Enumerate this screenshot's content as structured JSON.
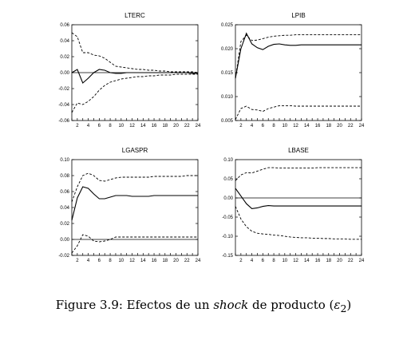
{
  "caption": {
    "prefix": "Figure 3.9: Efectos de un ",
    "italic": "shock",
    "middle": " de producto (",
    "symbol": "ε",
    "subscript": "2",
    "suffix": ")"
  },
  "chart_data": [
    {
      "type": "line",
      "title": "LTERC",
      "x": [
        1,
        2,
        3,
        4,
        5,
        6,
        7,
        8,
        9,
        10,
        11,
        12,
        13,
        14,
        15,
        16,
        17,
        18,
        19,
        20,
        21,
        22,
        23,
        24
      ],
      "xticks": [
        2,
        4,
        6,
        8,
        10,
        12,
        14,
        16,
        18,
        20,
        22,
        24
      ],
      "xlim": [
        1,
        24
      ],
      "ylim": [
        -0.06,
        0.06
      ],
      "yticks": [
        -0.06,
        -0.04,
        -0.02,
        0.0,
        0.02,
        0.04,
        0.06
      ],
      "ytick_labels": [
        "-0.06",
        "-0.04",
        "-0.02",
        "0.00",
        "0.02",
        "0.04",
        "0.06"
      ],
      "zero_line": true,
      "series": [
        {
          "role": "response",
          "values": [
            0.0,
            0.004,
            -0.013,
            -0.007,
            0.0,
            0.004,
            0.003,
            0.0,
            -0.001,
            -0.001,
            0.0,
            0.0,
            0.0,
            0.0,
            0.0,
            0.0,
            0.0,
            0.0,
            0.0,
            0.0,
            0.0,
            0.0,
            -0.001,
            -0.001
          ]
        },
        {
          "role": "upper",
          "values": [
            0.05,
            0.045,
            0.025,
            0.025,
            0.022,
            0.021,
            0.018,
            0.013,
            0.008,
            0.007,
            0.006,
            0.005,
            0.004,
            0.004,
            0.003,
            0.003,
            0.002,
            0.002,
            0.001,
            0.001,
            0.001,
            0.001,
            0.001,
            0.0
          ]
        },
        {
          "role": "lower",
          "values": [
            -0.05,
            -0.038,
            -0.04,
            -0.036,
            -0.03,
            -0.022,
            -0.016,
            -0.012,
            -0.01,
            -0.008,
            -0.007,
            -0.006,
            -0.005,
            -0.005,
            -0.004,
            -0.004,
            -0.003,
            -0.003,
            -0.003,
            -0.002,
            -0.002,
            -0.002,
            -0.002,
            -0.002
          ]
        }
      ]
    },
    {
      "type": "line",
      "title": "LPIB",
      "x": [
        1,
        2,
        3,
        4,
        5,
        6,
        7,
        8,
        9,
        10,
        11,
        12,
        13,
        14,
        15,
        16,
        17,
        18,
        19,
        20,
        21,
        22,
        23,
        24
      ],
      "xticks": [
        2,
        4,
        6,
        8,
        10,
        12,
        14,
        16,
        18,
        20,
        22,
        24
      ],
      "xlim": [
        1,
        24
      ],
      "ylim": [
        0.005,
        0.025
      ],
      "yticks": [
        0.005,
        0.01,
        0.015,
        0.02,
        0.025
      ],
      "ytick_labels": [
        "0.005",
        "0.010",
        "0.015",
        "0.020",
        "0.025"
      ],
      "zero_line": false,
      "series": [
        {
          "role": "response",
          "values": [
            0.0138,
            0.02,
            0.0232,
            0.021,
            0.0202,
            0.0198,
            0.0205,
            0.0209,
            0.021,
            0.0208,
            0.0207,
            0.0207,
            0.0208,
            0.0208,
            0.0208,
            0.0208,
            0.0208,
            0.0208,
            0.0208,
            0.0208,
            0.0208,
            0.0208,
            0.0208,
            0.0208
          ]
        },
        {
          "role": "upper",
          "values": [
            0.0138,
            0.0215,
            0.0228,
            0.0217,
            0.0218,
            0.0221,
            0.0224,
            0.0226,
            0.0227,
            0.0228,
            0.0228,
            0.0229,
            0.0229,
            0.0229,
            0.0229,
            0.0229,
            0.0229,
            0.0229,
            0.0229,
            0.0229,
            0.0229,
            0.0229,
            0.0229,
            0.0229
          ]
        },
        {
          "role": "lower",
          "values": [
            0.0052,
            0.0075,
            0.008,
            0.0073,
            0.0072,
            0.0069,
            0.0075,
            0.0078,
            0.0081,
            0.0081,
            0.0081,
            0.008,
            0.008,
            0.008,
            0.008,
            0.008,
            0.008,
            0.008,
            0.008,
            0.008,
            0.008,
            0.008,
            0.008,
            0.008
          ]
        }
      ]
    },
    {
      "type": "line",
      "title": "LGASPR",
      "x": [
        1,
        2,
        3,
        4,
        5,
        6,
        7,
        8,
        9,
        10,
        11,
        12,
        13,
        14,
        15,
        16,
        17,
        18,
        19,
        20,
        21,
        22,
        23,
        24
      ],
      "xticks": [
        2,
        4,
        6,
        8,
        10,
        12,
        14,
        16,
        18,
        20,
        22,
        24
      ],
      "xlim": [
        1,
        24
      ],
      "ylim": [
        -0.02,
        0.1
      ],
      "yticks": [
        -0.02,
        0.0,
        0.02,
        0.04,
        0.06,
        0.08,
        0.1
      ],
      "ytick_labels": [
        "-0.02",
        "0.00",
        "0.02",
        "0.04",
        "0.06",
        "0.08",
        "0.10"
      ],
      "zero_line": true,
      "series": [
        {
          "role": "response",
          "values": [
            0.024,
            0.052,
            0.066,
            0.064,
            0.057,
            0.051,
            0.051,
            0.053,
            0.055,
            0.055,
            0.055,
            0.054,
            0.054,
            0.054,
            0.054,
            0.055,
            0.055,
            0.055,
            0.055,
            0.055,
            0.055,
            0.055,
            0.055,
            0.055
          ]
        },
        {
          "role": "upper",
          "values": [
            0.047,
            0.066,
            0.08,
            0.083,
            0.08,
            0.074,
            0.073,
            0.075,
            0.077,
            0.078,
            0.078,
            0.078,
            0.078,
            0.078,
            0.078,
            0.079,
            0.079,
            0.079,
            0.079,
            0.079,
            0.079,
            0.08,
            0.08,
            0.08
          ]
        },
        {
          "role": "lower",
          "values": [
            -0.017,
            -0.008,
            0.006,
            0.004,
            -0.002,
            -0.003,
            -0.002,
            0.0,
            0.003,
            0.003,
            0.003,
            0.003,
            0.003,
            0.003,
            0.003,
            0.003,
            0.003,
            0.003,
            0.003,
            0.003,
            0.003,
            0.003,
            0.003,
            0.003
          ]
        }
      ]
    },
    {
      "type": "line",
      "title": "LBASE",
      "x": [
        1,
        2,
        3,
        4,
        5,
        6,
        7,
        8,
        9,
        10,
        11,
        12,
        13,
        14,
        15,
        16,
        17,
        18,
        19,
        20,
        21,
        22,
        23,
        24
      ],
      "xticks": [
        2,
        4,
        6,
        8,
        10,
        12,
        14,
        16,
        18,
        20,
        22,
        24
      ],
      "xlim": [
        1,
        24
      ],
      "ylim": [
        -0.15,
        0.1
      ],
      "yticks": [
        -0.15,
        -0.1,
        -0.05,
        0.0,
        0.05,
        0.1
      ],
      "ytick_labels": [
        "-0.15",
        "-0.10",
        "-0.05",
        "0.00",
        "0.05",
        "0.10"
      ],
      "zero_line": true,
      "series": [
        {
          "role": "response",
          "values": [
            0.025,
            0.005,
            -0.015,
            -0.028,
            -0.026,
            -0.022,
            -0.02,
            -0.021,
            -0.021,
            -0.021,
            -0.021,
            -0.021,
            -0.021,
            -0.021,
            -0.021,
            -0.021,
            -0.021,
            -0.021,
            -0.021,
            -0.021,
            -0.021,
            -0.021,
            -0.021,
            -0.021
          ]
        },
        {
          "role": "upper",
          "values": [
            0.045,
            0.06,
            0.066,
            0.065,
            0.07,
            0.075,
            0.079,
            0.079,
            0.078,
            0.078,
            0.078,
            0.078,
            0.078,
            0.078,
            0.078,
            0.079,
            0.079,
            0.079,
            0.079,
            0.079,
            0.079,
            0.079,
            0.079,
            0.079
          ]
        },
        {
          "role": "lower",
          "values": [
            -0.022,
            -0.055,
            -0.075,
            -0.087,
            -0.092,
            -0.094,
            -0.095,
            -0.097,
            -0.098,
            -0.1,
            -0.102,
            -0.103,
            -0.104,
            -0.104,
            -0.105,
            -0.105,
            -0.106,
            -0.106,
            -0.107,
            -0.107,
            -0.107,
            -0.108,
            -0.108,
            -0.108
          ]
        }
      ]
    }
  ]
}
